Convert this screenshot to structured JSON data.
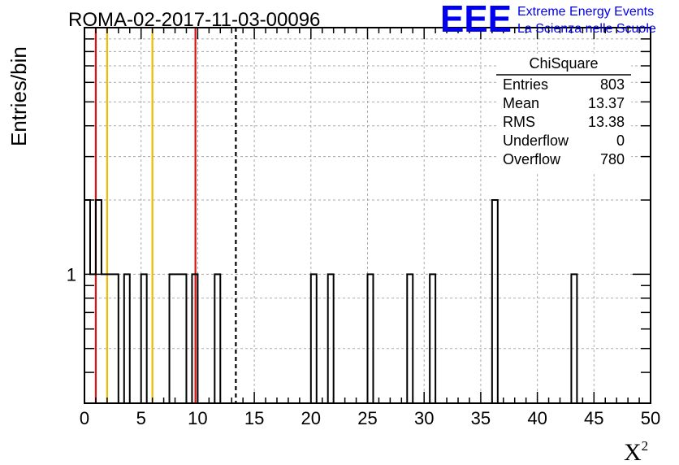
{
  "title": "ROMA-02-2017-11-03-00096",
  "logo": {
    "text": "EEE",
    "line1": "Extreme Energy Events",
    "line2": "La Scienza nelle Scuole",
    "color": "#0000ee"
  },
  "stats": {
    "name": "ChiSquare",
    "rows": [
      {
        "label": "Entries",
        "value": "803"
      },
      {
        "label": "Mean",
        "value": "13.37"
      },
      {
        "label": "RMS",
        "value": "13.38"
      },
      {
        "label": "Underflow",
        "value": "0"
      },
      {
        "label": "Overflow",
        "value": "780"
      }
    ]
  },
  "chart_data": {
    "type": "bar",
    "title": "ROMA-02-2017-11-03-00096",
    "ylabel": "Entries/bin",
    "xlabel": "X",
    "xlabel_superscript": "2",
    "y_scale": "log",
    "ylim": [
      0.3,
      10
    ],
    "xlim": [
      0,
      50
    ],
    "bin_width": 0.5,
    "x_ticks": [
      0,
      5,
      10,
      15,
      20,
      25,
      30,
      35,
      40,
      45,
      50
    ],
    "y_tick_labels": [
      "1"
    ],
    "grid": true,
    "bins": [
      {
        "x": 0.0,
        "count": 2
      },
      {
        "x": 0.5,
        "count": 1
      },
      {
        "x": 1.0,
        "count": 2
      },
      {
        "x": 1.5,
        "count": 1
      },
      {
        "x": 2.0,
        "count": 1
      },
      {
        "x": 2.5,
        "count": 1
      },
      {
        "x": 3.5,
        "count": 1
      },
      {
        "x": 5.0,
        "count": 1
      },
      {
        "x": 7.5,
        "count": 1
      },
      {
        "x": 8.0,
        "count": 1
      },
      {
        "x": 8.5,
        "count": 1
      },
      {
        "x": 9.5,
        "count": 1
      },
      {
        "x": 11.5,
        "count": 1
      },
      {
        "x": 20.0,
        "count": 1
      },
      {
        "x": 21.5,
        "count": 1
      },
      {
        "x": 25.0,
        "count": 1
      },
      {
        "x": 28.5,
        "count": 1
      },
      {
        "x": 30.5,
        "count": 1
      },
      {
        "x": 36.0,
        "count": 2
      },
      {
        "x": 43.0,
        "count": 1
      }
    ],
    "vertical_lines": [
      {
        "x": 1.0,
        "color": "#dd1111",
        "style": "solid"
      },
      {
        "x": 2.0,
        "color": "#eebb00",
        "style": "solid"
      },
      {
        "x": 6.0,
        "color": "#eebb00",
        "style": "solid"
      },
      {
        "x": 9.8,
        "color": "#dd1111",
        "style": "solid"
      },
      {
        "x": 13.37,
        "color": "#000000",
        "style": "dashed"
      }
    ]
  }
}
